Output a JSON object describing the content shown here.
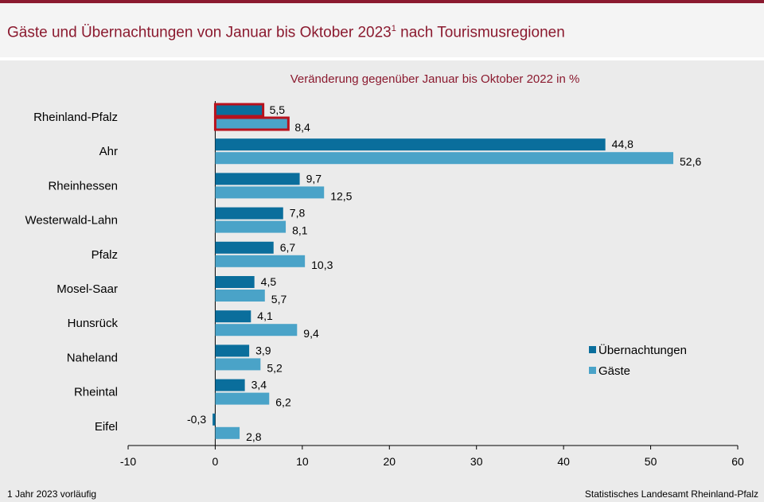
{
  "header": {
    "title": "Gäste und Übernachtungen von Januar bis Oktober 2023",
    "title_sup": "1",
    "title_suffix": " nach Tourismusregionen"
  },
  "colors": {
    "accent": "#8b1a2f",
    "uebernachtungen": "#0a6e9c",
    "gaeste": "#4aa3c8",
    "highlight_border": "#b8121d"
  },
  "chart_data": {
    "type": "bar",
    "orientation": "horizontal",
    "subtitle": "Veränderung  gegenüber  Januar bis Oktober 2022 in %",
    "categories": [
      "Rheinland-Pfalz",
      "Ahr",
      "Rheinhessen",
      "Westerwald-Lahn",
      "Pfalz",
      "Mosel-Saar",
      "Hunsrück",
      "Naheland",
      "Rheintal",
      "Eifel"
    ],
    "series": [
      {
        "name": "Übernachtungen",
        "values": [
          5.5,
          44.8,
          9.7,
          7.8,
          6.7,
          4.5,
          4.1,
          3.9,
          3.4,
          -0.3
        ],
        "labels": [
          "5,5",
          "44,8",
          "9,7",
          "7,8",
          "6,7",
          "4,5",
          "4,1",
          "3,9",
          "3,4",
          "-0,3"
        ]
      },
      {
        "name": "Gäste",
        "values": [
          8.4,
          52.6,
          12.5,
          8.1,
          10.3,
          5.7,
          9.4,
          5.2,
          6.2,
          2.8
        ],
        "labels": [
          "8,4",
          "52,6",
          "12,5",
          "8,1",
          "10,3",
          "5,7",
          "9,4",
          "5,2",
          "6,2",
          "2,8"
        ]
      }
    ],
    "highlight_category": "Rheinland-Pfalz",
    "xlim": [
      -10,
      60
    ],
    "xticks": [
      -10,
      0,
      10,
      20,
      30,
      40,
      50,
      60
    ],
    "legend_position": "right"
  },
  "footer": {
    "footnote": "1 Jahr  2023  vorläufig",
    "source": "Statistisches Landesamt  Rheinland-Pfalz"
  }
}
